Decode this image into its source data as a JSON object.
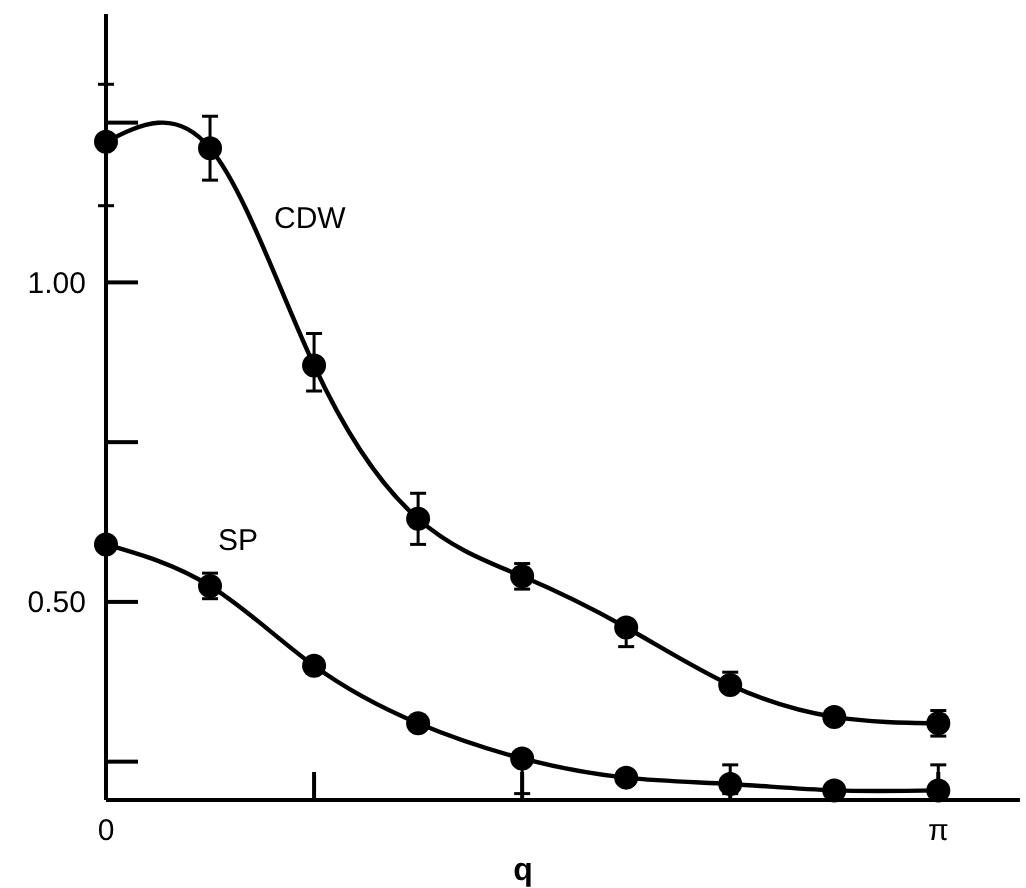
{
  "chart_data": {
    "type": "line",
    "xlabel": "q",
    "x": [
      0,
      0.3927,
      0.7854,
      1.1781,
      1.5708,
      1.9635,
      2.3562,
      2.7489,
      3.1416
    ],
    "series": [
      {
        "name": "CDW",
        "color": "#000000",
        "values": [
          1.22,
          1.21,
          0.87,
          0.63,
          0.54,
          0.46,
          0.37,
          0.32,
          0.31
        ],
        "errors": [
          [
            1.12,
            1.31
          ],
          [
            1.16,
            1.26
          ],
          [
            0.83,
            0.92
          ],
          [
            0.59,
            0.67
          ],
          [
            0.52,
            0.56
          ],
          [
            0.43,
            0.47
          ],
          [
            0.36,
            0.39
          ],
          [
            0.31,
            0.33
          ],
          [
            0.29,
            0.33
          ]
        ]
      },
      {
        "name": "SP",
        "color": "#000000",
        "values": [
          0.59,
          0.525,
          0.4,
          0.31,
          0.255,
          0.225,
          0.215,
          0.205,
          0.205
        ],
        "errors": [
          null,
          [
            0.505,
            0.545
          ],
          null,
          null,
          [
            0.2,
            0.255
          ],
          null,
          [
            0.2,
            0.245
          ],
          null,
          [
            0.205,
            0.245
          ]
        ]
      }
    ],
    "xlim": [
      0,
      3.45
    ],
    "ylim": [
      0.19,
      1.42
    ],
    "xticks": [
      0,
      {
        "value": 0.7854,
        "label": null
      },
      {
        "value": 1.5708,
        "label": null
      },
      {
        "value": 2.3562,
        "label": null
      },
      {
        "value": 3.1416,
        "label": "π"
      }
    ],
    "yticks": [
      {
        "value": 0.25,
        "label": null
      },
      {
        "value": 0.5,
        "label": "0.50"
      },
      {
        "value": 0.75,
        "label": null
      },
      {
        "value": 1.0,
        "label": "1.00"
      },
      {
        "value": 1.25,
        "label": null
      }
    ],
    "marker": "circle",
    "line_style": "solid",
    "grid": false
  }
}
